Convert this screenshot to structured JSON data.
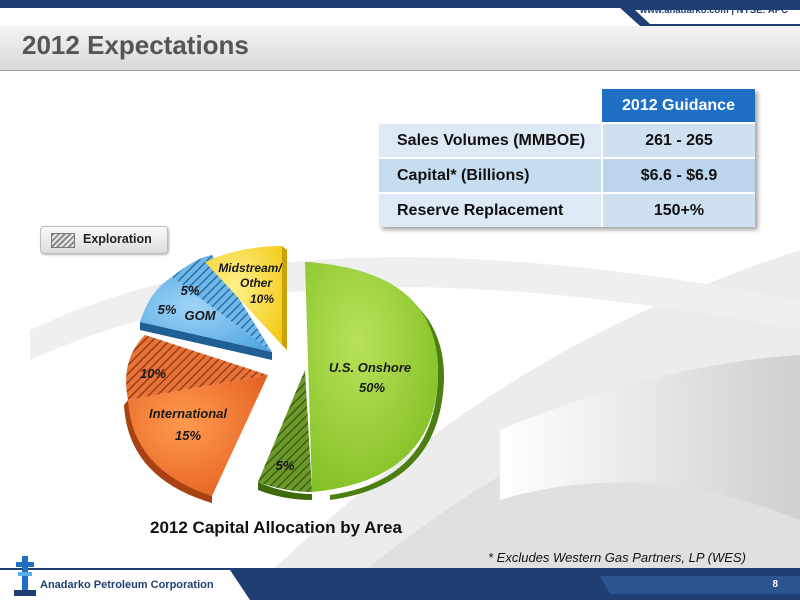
{
  "header": {
    "url_text": "www.anadarko.com | NYSE: APC",
    "title": "2012 Expectations"
  },
  "guidance_table": {
    "column_header": "2012 Guidance",
    "rows": [
      {
        "label": "Sales Volumes (MMBOE)",
        "value": "261 - 265"
      },
      {
        "label": "Capital* (Billions)",
        "value": "$6.6 - $6.9"
      },
      {
        "label": "Reserve Replacement",
        "value": "150+%"
      }
    ]
  },
  "legend": {
    "exploration_label": "Exploration",
    "exploration_pattern": "hatched"
  },
  "chart_data": {
    "type": "pie",
    "title": "2012 Capital Allocation by Area",
    "slices": [
      {
        "name": "U.S. Onshore",
        "value_label": "50%",
        "value": 50,
        "exploration_value_label": "5%",
        "exploration_value": 5,
        "color": "#8cc63f"
      },
      {
        "name": "International",
        "value_label": "15%",
        "value": 15,
        "exploration_value_label": "10%",
        "exploration_value": 10,
        "color": "#f26d21"
      },
      {
        "name": "GOM",
        "value_label": "5%",
        "value": 5,
        "exploration_value_label": "5%",
        "exploration_value": 5,
        "color": "#5aaee8"
      },
      {
        "name": "Midstream/ Other",
        "value_label": "10%",
        "value": 10,
        "color": "#f5d21f"
      }
    ],
    "labels": {
      "us_onshore_name": "U.S. Onshore",
      "us_onshore_pct": "50%",
      "us_onshore_expl": "5%",
      "international_name": "International",
      "international_pct": "15%",
      "international_expl": "10%",
      "gom_name": "GOM",
      "gom_pct": "5%",
      "gom_expl": "5%",
      "midstream_line1": "Midstream/",
      "midstream_line2": "Other",
      "midstream_pct": "10%"
    }
  },
  "footnote": "* Excludes Western Gas Partners, LP (WES)",
  "footer": {
    "company": "Anadarko Petroleum Corporation",
    "page_number": "8"
  }
}
